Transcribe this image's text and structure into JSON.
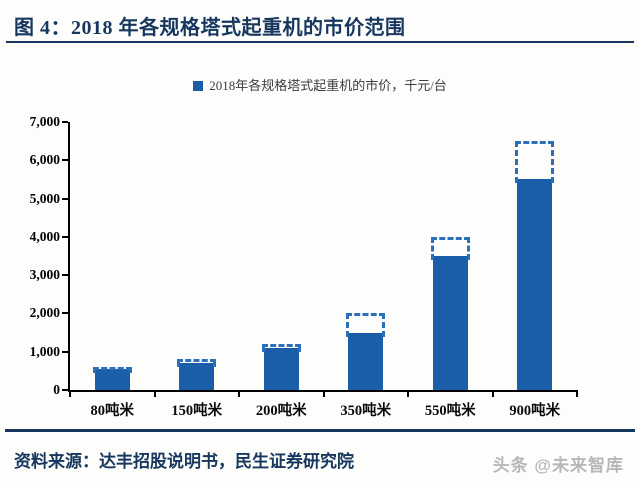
{
  "figure": {
    "title": "图 4：2018 年各规格塔式起重机的市价范围",
    "source": "资料来源：达丰招股说明书，民生证券研究院",
    "watermark": "头条 @未来智库"
  },
  "colors": {
    "navy": "#17375e",
    "bar_fill": "#1a5da8",
    "bar_dash_outline": "#2b6fb8",
    "axis_black": "#000000",
    "legend_text": "#3d3d3d",
    "watermark_gray": "#b7b7b7"
  },
  "chart_data": {
    "type": "bar",
    "legend_label": "2018年各规格塔式起重机的市价，千元/台",
    "unit": "千元/台",
    "categories": [
      "80吨米",
      "150吨米",
      "200吨米",
      "350吨米",
      "550吨米",
      "900吨米"
    ],
    "series": [
      {
        "name": "solid-bar-price-min",
        "values": [
          550,
          700,
          1100,
          1500,
          3500,
          5500
        ]
      },
      {
        "name": "dashed-box-price-max",
        "values": [
          600,
          800,
          1200,
          2000,
          4000,
          6500
        ]
      }
    ],
    "ylim": [
      0,
      7000
    ],
    "y_ticks": [
      "0",
      "1,000",
      "2,000",
      "3,000",
      "4,000",
      "5,000",
      "6,000",
      "7,000"
    ],
    "grid": false,
    "legend_position": "top"
  }
}
